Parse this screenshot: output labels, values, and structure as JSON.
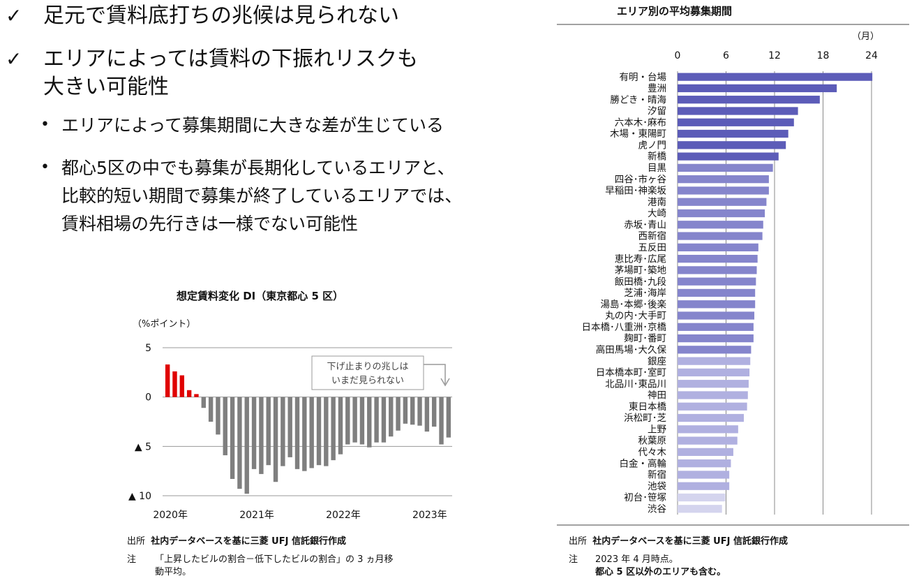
{
  "bullets": {
    "check1": "足元で賃料底打ちの兆候は見られない",
    "check2_line1": "エリアによっては賃料の下振れリスクも",
    "check2_line2": "大きい可能性",
    "sub1": "エリアによって募集期間に大きな差が生じている",
    "sub2_line1": "都心5区の中でも募集が長期化しているエリアと、",
    "sub2_line2": "比較的短い期間で募集が終了しているエリアでは、",
    "sub2_line3": "賃料相場の先行きは一様でない可能性",
    "check_mark": "✓",
    "dot_mark": "•"
  },
  "colors": {
    "positive": "#e00000",
    "negative": "#7f7f7f",
    "bar_dark": "#5c5cb8",
    "bar_mid": "#8585cc",
    "bar_light": "#b0b0e0",
    "bar_lightest": "#d4d4ee"
  },
  "chart_data": [
    {
      "type": "bar",
      "title": "想定賃料変化 DI（東京都心 5 区）",
      "ylabel": "（%ポイント）",
      "ylim": [
        -10,
        5
      ],
      "yticks": [
        5,
        0,
        -5,
        -10
      ],
      "ytick_labels": [
        "5",
        "0",
        "▲ 5",
        "▲ 10"
      ],
      "xtick_labels": [
        "2020年",
        "2021年",
        "2022年",
        "2023年"
      ],
      "annotation_line1": "下げ止まりの兆しは",
      "annotation_line2": "いまだ見られない",
      "values": [
        3.3,
        2.6,
        2.2,
        0.7,
        0.3,
        -1.1,
        -2.5,
        -3.8,
        -5.9,
        -8.3,
        -9.3,
        -9.8,
        -7.3,
        -7.8,
        -6.9,
        -8.6,
        -7.0,
        -6.1,
        -7.3,
        -7.5,
        -7.2,
        -6.9,
        -7.0,
        -6.4,
        -5.8,
        -4.8,
        -4.6,
        -4.8,
        -5.1,
        -4.6,
        -4.6,
        -4.0,
        -3.4,
        -2.7,
        -2.8,
        -2.9,
        -3.5,
        -3.0,
        -4.8,
        -4.1
      ],
      "source_label": "出所",
      "source_text": "社内データベースを基に三菱 UFJ 信託銀行作成",
      "note_label": "注",
      "note_line1": "「上昇したビルの割合－低下したビルの割合」の 3 ヵ月移",
      "note_line2": "動平均。"
    },
    {
      "type": "bar",
      "orientation": "horizontal",
      "title": "エリア別の平均募集期間",
      "unit": "（月）",
      "xlim": [
        0,
        24
      ],
      "xticks": [
        0,
        6,
        12,
        18,
        24
      ],
      "categories": [
        "有明・台場",
        "豊洲",
        "勝どき・晴海",
        "汐留",
        "六本木･麻布",
        "木場・東陽町",
        "虎ノ門",
        "新橋",
        "目黒",
        "四谷･市ヶ谷",
        "早稲田･神楽坂",
        "港南",
        "大崎",
        "赤坂･青山",
        "西新宿",
        "五反田",
        "恵比寿･広尾",
        "茅場町･築地",
        "飯田橋･九段",
        "芝浦･海岸",
        "湯島･本郷･後楽",
        "丸の内･大手町",
        "日本橋･八重洲･京橋",
        "麹町･番町",
        "高田馬場･大久保",
        "銀座",
        "日本橋本町･室町",
        "北品川･東品川",
        "神田",
        "東日本橋",
        "浜松町･芝",
        "上野",
        "秋葉原",
        "代々木",
        "白金・高輪",
        "新宿",
        "池袋",
        "初台･笹塚",
        "渋谷"
      ],
      "values": [
        24.1,
        19.7,
        17.6,
        14.9,
        14.4,
        13.7,
        13.4,
        12.5,
        11.8,
        11.3,
        11.3,
        11.0,
        10.8,
        10.6,
        10.5,
        10.0,
        9.9,
        9.8,
        9.7,
        9.6,
        9.6,
        9.5,
        9.4,
        9.4,
        9.1,
        9.0,
        8.9,
        8.8,
        8.7,
        8.6,
        8.2,
        7.5,
        7.4,
        6.9,
        6.6,
        6.4,
        6.4,
        5.9,
        5.5
      ],
      "source_label": "出所",
      "source_text": "社内データベースを基に三菱 UFJ 信託銀行作成",
      "note_label": "注",
      "note_line1": "2023 年 4 月時点。",
      "note_line2": "都心 5 区以外のエリアも含む。"
    }
  ]
}
